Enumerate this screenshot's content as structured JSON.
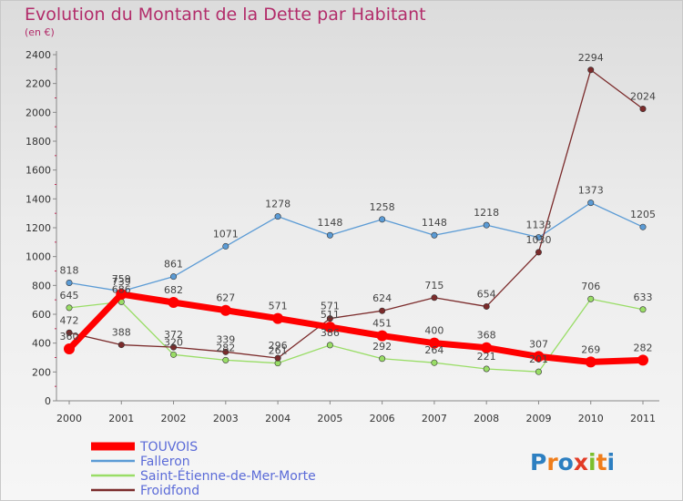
{
  "header": {
    "title": "Evolution du Montant de la Dette par Habitant",
    "subtitle": "(en €)"
  },
  "logo": {
    "letters": [
      "P",
      "r",
      "o",
      "x",
      "i",
      "t",
      "i"
    ]
  },
  "colors": {
    "title": "#b22c6a",
    "logo": [
      "#2d7fc1",
      "#ef7d1a",
      "#2d7fc1",
      "#e23b26",
      "#7cbf2c",
      "#ef7d1a",
      "#2d7fc1"
    ]
  },
  "chart_data": {
    "type": "line",
    "title": "Evolution du Montant de la Dette par Habitant",
    "subtitle": "(en €)",
    "x": [
      "2000",
      "2001",
      "2002",
      "2003",
      "2004",
      "2005",
      "2006",
      "2007",
      "2008",
      "2009",
      "2010",
      "2011"
    ],
    "ylim": [
      0,
      2400
    ],
    "yticks": [
      0,
      200,
      400,
      600,
      800,
      1000,
      1200,
      1400,
      1600,
      1800,
      2000,
      2200,
      2400
    ],
    "grid": false,
    "legend_position": "bottom-left",
    "series": [
      {
        "name": "TOUVOIS",
        "color": "#ff0000",
        "width": 7,
        "values": [
          360,
          739,
          682,
          627,
          571,
          511,
          451,
          400,
          368,
          307,
          269,
          282
        ]
      },
      {
        "name": "Falleron",
        "color": "#5b9bd5",
        "width": 1.3,
        "values": [
          818,
          759,
          861,
          1071,
          1278,
          1148,
          1258,
          1148,
          1218,
          1133,
          1373,
          1205
        ]
      },
      {
        "name": "Saint-Étienne-de-Mer-Morte",
        "color": "#99dd66",
        "width": 1.3,
        "values": [
          645,
          686,
          320,
          282,
          261,
          386,
          292,
          264,
          221,
          201,
          706,
          633
        ]
      },
      {
        "name": "Froidfond",
        "color": "#7b2b2b",
        "width": 1.3,
        "values": [
          472,
          388,
          372,
          339,
          296,
          571,
          624,
          715,
          654,
          1030,
          2294,
          2024
        ]
      }
    ]
  }
}
